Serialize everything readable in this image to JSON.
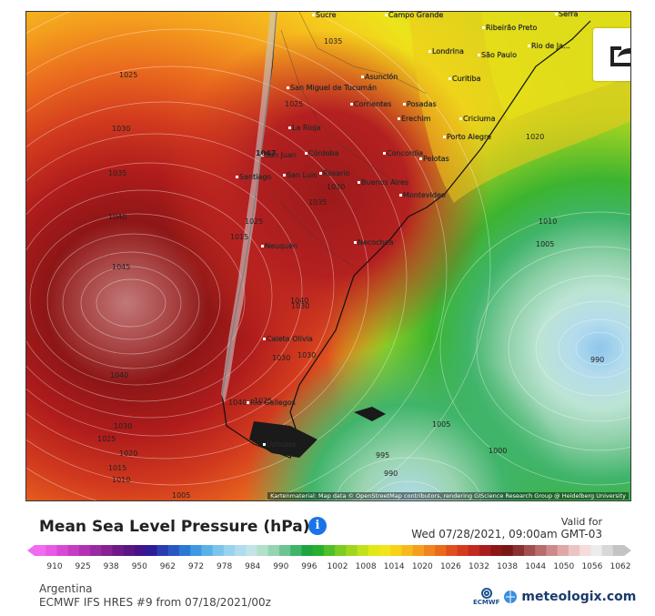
{
  "map": {
    "cities": [
      {
        "name": "Sucre"
      },
      {
        "name": "Campo Grande"
      },
      {
        "name": "Serra"
      },
      {
        "name": "Ribeirão Preto"
      },
      {
        "name": "Rio de Ja..."
      },
      {
        "name": "Londrina"
      },
      {
        "name": "São Paulo"
      },
      {
        "name": "Asunción"
      },
      {
        "name": "Curitiba"
      },
      {
        "name": "San Miguel de Tucumán"
      },
      {
        "name": "Corrientes"
      },
      {
        "name": "Posadas"
      },
      {
        "name": "Erechim"
      },
      {
        "name": "Criciuma"
      },
      {
        "name": "La Rioja"
      },
      {
        "name": "Porto Alegre"
      },
      {
        "name": "San Juan"
      },
      {
        "name": "Córdoba"
      },
      {
        "name": "Concordia"
      },
      {
        "name": "Pelotas"
      },
      {
        "name": "Santiago"
      },
      {
        "name": "San Luis"
      },
      {
        "name": "Rosario"
      },
      {
        "name": "Buenos Aires"
      },
      {
        "name": "Montevideo"
      },
      {
        "name": "Neuquén"
      },
      {
        "name": "Necochea"
      },
      {
        "name": "Caleta Olivia"
      },
      {
        "name": "Río Gallegos"
      },
      {
        "name": "Ushuaia"
      }
    ],
    "isobar_labels": [
      "1025",
      "1030",
      "1035",
      "1040",
      "1045",
      "1040",
      "1030",
      "1025",
      "1020",
      "1015",
      "1010",
      "1005",
      "1035",
      "1047",
      "1025",
      "1030",
      "1035",
      "1040",
      "1030",
      "1025",
      "1040",
      "1020",
      "1010",
      "1005",
      "1000",
      "995",
      "990",
      "990",
      "1030",
      "1030",
      "1025",
      "1015",
      "1005"
    ],
    "attribution": "Kartenmaterial: Map data © OpenStreetMap contributors, rendering GIScience Research Group @ Heidelberg University",
    "share_icon": "share-icon"
  },
  "header": {
    "title": "Mean Sea Level Pressure (hPa)",
    "info_icon": "info-icon",
    "valid_label": "Valid for",
    "valid_time": "Wed 07/28/2021, 09:00am GMT-03"
  },
  "legend": {
    "ticks": [
      "910",
      "925",
      "938",
      "950",
      "962",
      "972",
      "978",
      "984",
      "990",
      "996",
      "1002",
      "1008",
      "1014",
      "1020",
      "1026",
      "1032",
      "1038",
      "1044",
      "1050",
      "1056",
      "1062"
    ],
    "colors": [
      "#f06cf0",
      "#e85ae6",
      "#d84ad6",
      "#c43ec4",
      "#b032b2",
      "#9a2aa2",
      "#862292",
      "#6e1a86",
      "#5a1682",
      "#44128a",
      "#2e1c9a",
      "#2a3cb0",
      "#2858c4",
      "#2a78d6",
      "#3c98e2",
      "#5cb0e8",
      "#7cc4ec",
      "#98d2ee",
      "#b0dced",
      "#c2e4e8",
      "#b2e0cc",
      "#94d4b2",
      "#6cc494",
      "#40b46a",
      "#20a440",
      "#28b02a",
      "#50c028",
      "#7ccc24",
      "#a0d620",
      "#c4e01c",
      "#e2e818",
      "#f2e41a",
      "#f6d21a",
      "#f6ba1c",
      "#f4a01e",
      "#f0841e",
      "#ea6a1e",
      "#e0501e",
      "#d43a1e",
      "#c22a1e",
      "#a81e1e",
      "#8e1616",
      "#7a1616",
      "#8a3030",
      "#a05050",
      "#b86c6c",
      "#cc8a8a",
      "#dea8a8",
      "#ecc4c4",
      "#f4dcdc",
      "#ececec",
      "#d8d8d8",
      "#c4c4c4"
    ]
  },
  "footer": {
    "region": "Argentina",
    "model": "ECMWF IFS HRES #9 from 07/18/2021/00z",
    "ecmwf_label": "ECMWF",
    "brand": "meteologix.com"
  }
}
